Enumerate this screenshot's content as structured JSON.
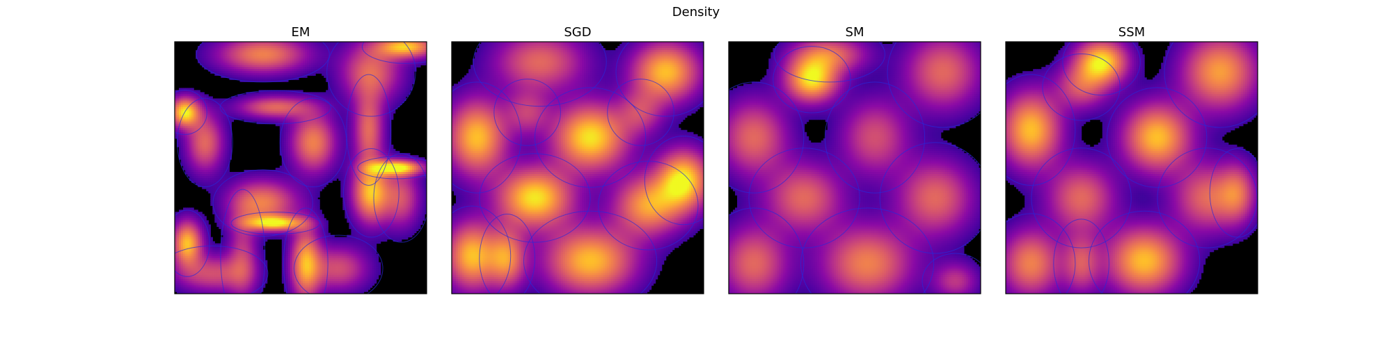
{
  "figure": {
    "title": "Density"
  },
  "colors": {
    "background": "#000000",
    "contour_line": "#2a2ad8",
    "frame": "#000000",
    "colormap": "plasma"
  },
  "chart_data": [
    {
      "type": "heatmap",
      "title": "EM",
      "xlabel": "",
      "ylabel": "",
      "axes_ticks": "none",
      "grid": false,
      "colormap": "plasma",
      "blobs": [
        {
          "x": 0.35,
          "y": 0.95,
          "sx": 0.12,
          "sy": 0.05,
          "w": 0.7
        },
        {
          "x": 0.78,
          "y": 0.88,
          "sx": 0.08,
          "sy": 0.08,
          "w": 0.6
        },
        {
          "x": 0.92,
          "y": 0.98,
          "sx": 0.08,
          "sy": 0.03,
          "w": 0.9
        },
        {
          "x": 0.04,
          "y": 0.72,
          "sx": 0.04,
          "sy": 0.04,
          "w": 1.0
        },
        {
          "x": 0.12,
          "y": 0.6,
          "sx": 0.05,
          "sy": 0.08,
          "w": 0.6
        },
        {
          "x": 0.55,
          "y": 0.6,
          "sx": 0.06,
          "sy": 0.08,
          "w": 0.7
        },
        {
          "x": 0.4,
          "y": 0.74,
          "sx": 0.1,
          "sy": 0.03,
          "w": 0.6
        },
        {
          "x": 0.77,
          "y": 0.65,
          "sx": 0.04,
          "sy": 0.1,
          "w": 0.6
        },
        {
          "x": 0.35,
          "y": 0.36,
          "sx": 0.09,
          "sy": 0.06,
          "w": 0.7
        },
        {
          "x": 0.4,
          "y": 0.28,
          "sx": 0.08,
          "sy": 0.02,
          "w": 0.9
        },
        {
          "x": 0.78,
          "y": 0.4,
          "sx": 0.05,
          "sy": 0.08,
          "w": 0.9
        },
        {
          "x": 0.88,
          "y": 0.5,
          "sx": 0.07,
          "sy": 0.02,
          "w": 1.0
        },
        {
          "x": 0.9,
          "y": 0.38,
          "sx": 0.05,
          "sy": 0.08,
          "w": 0.5
        },
        {
          "x": 0.05,
          "y": 0.2,
          "sx": 0.04,
          "sy": 0.06,
          "w": 0.9
        },
        {
          "x": 0.15,
          "y": 0.08,
          "sx": 0.1,
          "sy": 0.05,
          "w": 0.5
        },
        {
          "x": 0.52,
          "y": 0.12,
          "sx": 0.04,
          "sy": 0.1,
          "w": 0.8
        },
        {
          "x": 0.65,
          "y": 0.1,
          "sx": 0.08,
          "sy": 0.06,
          "w": 0.5
        },
        {
          "x": 0.27,
          "y": 0.15,
          "sx": 0.04,
          "sy": 0.12,
          "w": 0.4
        }
      ]
    },
    {
      "type": "heatmap",
      "title": "SGD",
      "xlabel": "",
      "ylabel": "",
      "axes_ticks": "none",
      "grid": false,
      "colormap": "plasma",
      "blobs": [
        {
          "x": 0.35,
          "y": 0.92,
          "sx": 0.12,
          "sy": 0.08,
          "w": 0.6
        },
        {
          "x": 0.85,
          "y": 0.88,
          "sx": 0.09,
          "sy": 0.08,
          "w": 0.9
        },
        {
          "x": 0.1,
          "y": 0.62,
          "sx": 0.08,
          "sy": 0.1,
          "w": 0.9
        },
        {
          "x": 0.55,
          "y": 0.62,
          "sx": 0.1,
          "sy": 0.09,
          "w": 1.0
        },
        {
          "x": 0.3,
          "y": 0.72,
          "sx": 0.06,
          "sy": 0.06,
          "w": 0.4
        },
        {
          "x": 0.75,
          "y": 0.72,
          "sx": 0.06,
          "sy": 0.06,
          "w": 0.4
        },
        {
          "x": 0.92,
          "y": 0.45,
          "sx": 0.07,
          "sy": 0.08,
          "w": 1.0
        },
        {
          "x": 0.33,
          "y": 0.38,
          "sx": 0.1,
          "sy": 0.08,
          "w": 1.0
        },
        {
          "x": 0.78,
          "y": 0.35,
          "sx": 0.09,
          "sy": 0.08,
          "w": 0.8
        },
        {
          "x": 0.08,
          "y": 0.15,
          "sx": 0.07,
          "sy": 0.09,
          "w": 0.9
        },
        {
          "x": 0.55,
          "y": 0.13,
          "sx": 0.12,
          "sy": 0.09,
          "w": 0.9
        },
        {
          "x": 0.22,
          "y": 0.14,
          "sx": 0.05,
          "sy": 0.08,
          "w": 0.7
        }
      ]
    },
    {
      "type": "heatmap",
      "title": "SM",
      "xlabel": "",
      "ylabel": "",
      "axes_ticks": "none",
      "grid": false,
      "colormap": "plasma",
      "blobs": [
        {
          "x": 0.33,
          "y": 0.85,
          "sx": 0.07,
          "sy": 0.06,
          "w": 1.0
        },
        {
          "x": 0.4,
          "y": 0.95,
          "sx": 0.1,
          "sy": 0.05,
          "w": 0.6
        },
        {
          "x": 0.85,
          "y": 0.88,
          "sx": 0.1,
          "sy": 0.1,
          "w": 0.6
        },
        {
          "x": 0.1,
          "y": 0.62,
          "sx": 0.09,
          "sy": 0.1,
          "w": 0.6
        },
        {
          "x": 0.58,
          "y": 0.62,
          "sx": 0.09,
          "sy": 0.1,
          "w": 0.5
        },
        {
          "x": 0.3,
          "y": 0.38,
          "sx": 0.1,
          "sy": 0.09,
          "w": 0.6
        },
        {
          "x": 0.82,
          "y": 0.38,
          "sx": 0.1,
          "sy": 0.1,
          "w": 0.6
        },
        {
          "x": 0.1,
          "y": 0.12,
          "sx": 0.09,
          "sy": 0.1,
          "w": 0.6
        },
        {
          "x": 0.55,
          "y": 0.12,
          "sx": 0.12,
          "sy": 0.1,
          "w": 0.7
        },
        {
          "x": 0.9,
          "y": 0.05,
          "sx": 0.06,
          "sy": 0.05,
          "w": 0.4
        }
      ]
    },
    {
      "type": "heatmap",
      "title": "SSM",
      "xlabel": "",
      "ylabel": "",
      "axes_ticks": "none",
      "grid": false,
      "colormap": "plasma",
      "blobs": [
        {
          "x": 0.38,
          "y": 0.92,
          "sx": 0.07,
          "sy": 0.06,
          "w": 1.0
        },
        {
          "x": 0.3,
          "y": 0.82,
          "sx": 0.07,
          "sy": 0.06,
          "w": 0.5
        },
        {
          "x": 0.85,
          "y": 0.88,
          "sx": 0.1,
          "sy": 0.1,
          "w": 0.8
        },
        {
          "x": 0.1,
          "y": 0.65,
          "sx": 0.08,
          "sy": 0.1,
          "w": 0.9
        },
        {
          "x": 0.6,
          "y": 0.62,
          "sx": 0.09,
          "sy": 0.09,
          "w": 0.9
        },
        {
          "x": 0.3,
          "y": 0.38,
          "sx": 0.09,
          "sy": 0.09,
          "w": 0.6
        },
        {
          "x": 0.8,
          "y": 0.38,
          "sx": 0.09,
          "sy": 0.09,
          "w": 0.6
        },
        {
          "x": 0.92,
          "y": 0.4,
          "sx": 0.05,
          "sy": 0.08,
          "w": 0.5
        },
        {
          "x": 0.1,
          "y": 0.12,
          "sx": 0.08,
          "sy": 0.09,
          "w": 0.7
        },
        {
          "x": 0.55,
          "y": 0.13,
          "sx": 0.1,
          "sy": 0.09,
          "w": 0.9
        },
        {
          "x": 0.3,
          "y": 0.12,
          "sx": 0.05,
          "sy": 0.08,
          "w": 0.5
        }
      ]
    }
  ]
}
